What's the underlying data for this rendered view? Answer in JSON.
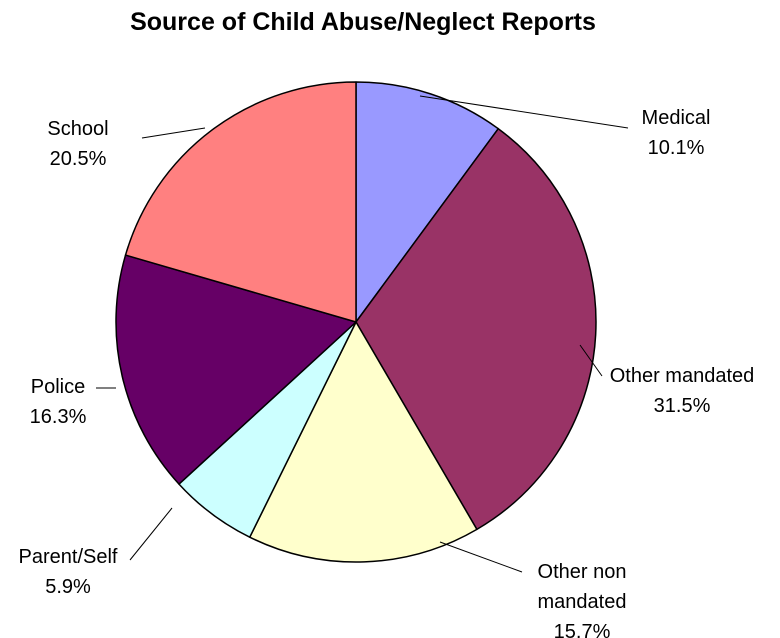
{
  "chart_data": {
    "type": "pie",
    "title": "Source of Child Abuse/Neglect Reports",
    "start_angle_deg": 0,
    "direction": "clockwise",
    "slices": [
      {
        "label": "Medical",
        "value": 10.1,
        "value_label": "10.1%",
        "color": "#9999FF"
      },
      {
        "label": "Other mandated",
        "value": 31.5,
        "value_label": "31.5%",
        "color": "#993366"
      },
      {
        "label": "Other non mandated",
        "value": 15.7,
        "value_label": "15.7%",
        "color": "#FFFFCC"
      },
      {
        "label": "Parent/Self",
        "value": 5.9,
        "value_label": "5.9%",
        "color": "#CCFFFF"
      },
      {
        "label": "Police",
        "value": 16.3,
        "value_label": "16.3%",
        "color": "#660066"
      },
      {
        "label": "School",
        "value": 20.5,
        "value_label": "20.5%",
        "color": "#FF8080"
      }
    ]
  }
}
